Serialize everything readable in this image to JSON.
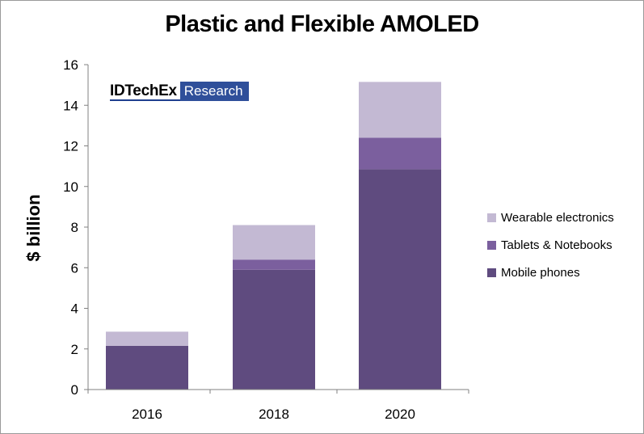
{
  "chart_data": {
    "type": "bar",
    "stacked": true,
    "title": "Plastic and Flexible AMOLED",
    "xlabel": "",
    "ylabel": "$ billion",
    "categories": [
      "2016",
      "2018",
      "2020"
    ],
    "ylim": [
      0,
      16
    ],
    "yticks": [
      0,
      2,
      4,
      6,
      8,
      10,
      12,
      14,
      16
    ],
    "grid": false,
    "legend_position": "right",
    "series": [
      {
        "name": "Mobile phones",
        "values": [
          2.15,
          5.9,
          10.85
        ],
        "color": "#5f4b7f"
      },
      {
        "name": "Tablets & Notebooks",
        "values": [
          0.0,
          0.5,
          1.55
        ],
        "color": "#7b5f9e"
      },
      {
        "name": "Wearable electronics",
        "values": [
          0.7,
          1.7,
          2.75
        ],
        "color": "#c3b9d3"
      }
    ]
  },
  "logo": {
    "brand": "IDTechEx",
    "sub": "Research"
  },
  "legend": [
    {
      "label": "Wearable electronics",
      "color": "#c3b9d3"
    },
    {
      "label": "Tablets & Notebooks",
      "color": "#7b5f9e"
    },
    {
      "label": "Mobile phones",
      "color": "#5f4b7f"
    }
  ]
}
